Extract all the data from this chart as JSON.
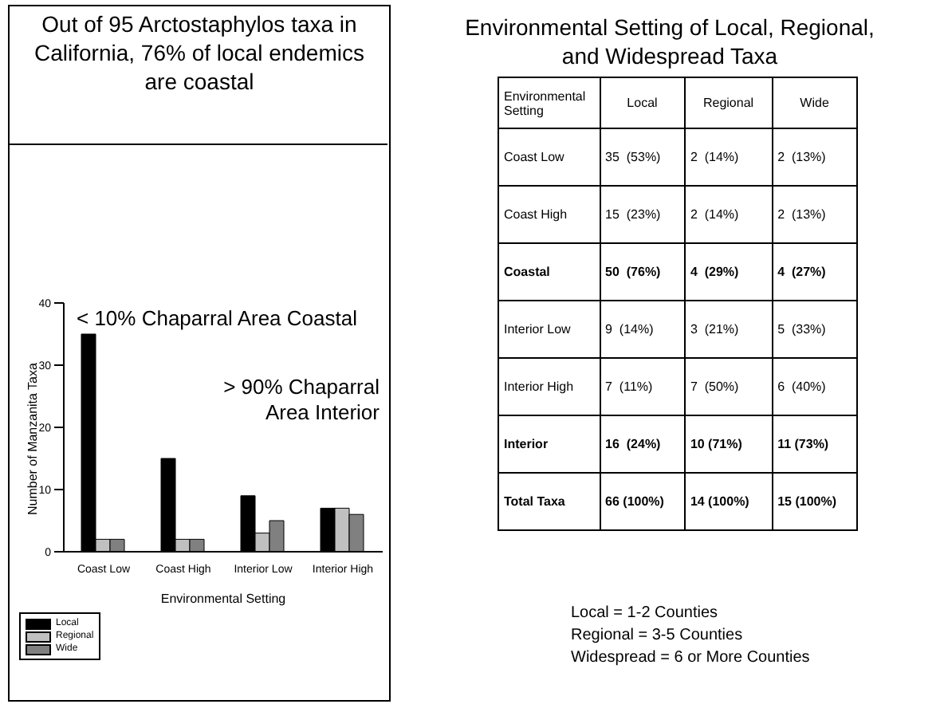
{
  "chart_data": {
    "type": "bar",
    "title": "Out of 95 Arctostaphylos taxa in California, 76% of local endemics are coastal",
    "xlabel": "Environmental Setting",
    "ylabel": "Number of Manzanita Taxa",
    "categories": [
      "Coast Low",
      "Coast High",
      "Interior Low",
      "Interior High"
    ],
    "series": [
      {
        "name": "Local",
        "color": "#000000",
        "values": [
          35,
          15,
          9,
          7
        ]
      },
      {
        "name": "Regional",
        "color": "#c0c0c0",
        "values": [
          2,
          2,
          3,
          7
        ]
      },
      {
        "name": "Wide",
        "color": "#808080",
        "values": [
          2,
          2,
          5,
          6
        ]
      }
    ],
    "ylim": [
      0,
      40
    ],
    "yticks": [
      0,
      10,
      20,
      30,
      40
    ],
    "grid": false,
    "legend": "bottom left",
    "annotations": [
      "< 10% Chaparral Area Coastal",
      "> 90% Chaparral Area Interior",
      "Environmental Setting of Local, Regional, and Widespread Taxa",
      "Environmental Setting",
      "Local",
      "Regional",
      "Wide",
      "Coast Low",
      "35  (53%)",
      "2  (14%)",
      "2  (13%)",
      "Coast High",
      "15  (23%)",
      "2  (14%)",
      "2  (13%)",
      "Coastal",
      "50  (76%)",
      "4  (29%)",
      "4  (27%)",
      "Interior Low",
      "9  (14%)",
      "3  (21%)",
      "5  (33%)",
      "Interior High",
      "7  (11%)",
      "7  (50%)",
      "6  (40%)",
      "Interior",
      "16  (24%)",
      "10 (71%)",
      "11 (73%)",
      "Total Taxa",
      "66 (100%)",
      "14 (100%)",
      "15 (100%)",
      "Local = 1-2 Counties",
      "Regional = 3-5 Counties",
      "Widespread = 6 or More Counties"
    ]
  }
}
